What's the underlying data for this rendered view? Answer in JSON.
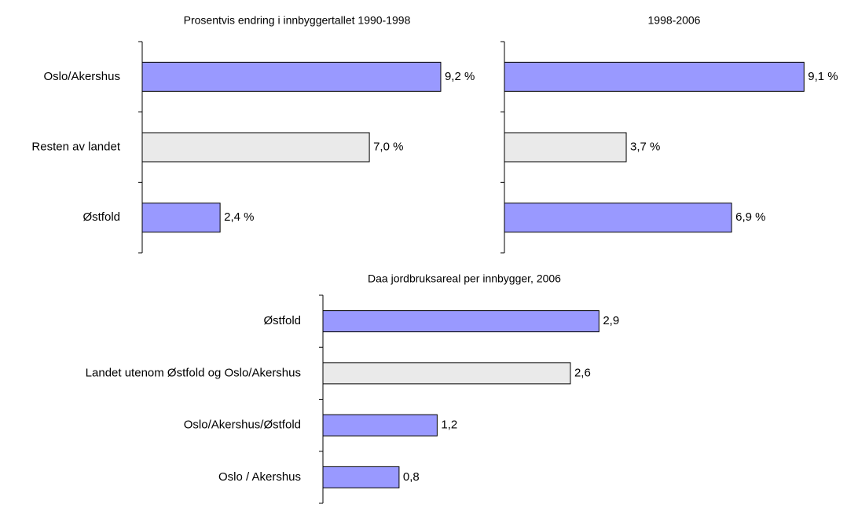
{
  "chart_data": [
    {
      "type": "bar",
      "orientation": "horizontal",
      "title": "Prosentvis endring i innbyggertallet 1990-1998",
      "categories": [
        "Oslo/Akershus",
        "Resten av landet",
        "Østfold"
      ],
      "values": [
        9.2,
        7.0,
        2.4
      ],
      "value_labels": [
        "9,2 %",
        "7,0 %",
        "2,4 %"
      ],
      "colors": [
        "#9999ff",
        "#eaeaea",
        "#9999ff"
      ],
      "xlim": [
        0,
        10
      ]
    },
    {
      "type": "bar",
      "orientation": "horizontal",
      "title": "1998-2006",
      "values": [
        9.1,
        3.7,
        6.9
      ],
      "value_labels": [
        "9,1 %",
        "3,7 %",
        "6,9 %"
      ],
      "colors": [
        "#9999ff",
        "#eaeaea",
        "#9999ff"
      ],
      "xlim": [
        0,
        10
      ]
    },
    {
      "type": "bar",
      "orientation": "horizontal",
      "title": "Daa jordbruksareal per innbygger, 2006",
      "categories": [
        "Østfold",
        "Landet utenom Østfold og Oslo/Akershus",
        "Oslo/Akershus/Østfold",
        "Oslo / Akershus"
      ],
      "values": [
        2.9,
        2.6,
        1.2,
        0.8
      ],
      "value_labels": [
        "2,9",
        "2,6",
        "1,2",
        "0,8"
      ],
      "colors": [
        "#9999ff",
        "#eaeaea",
        "#9999ff",
        "#9999ff"
      ],
      "xlim": [
        0,
        3.5
      ]
    }
  ]
}
